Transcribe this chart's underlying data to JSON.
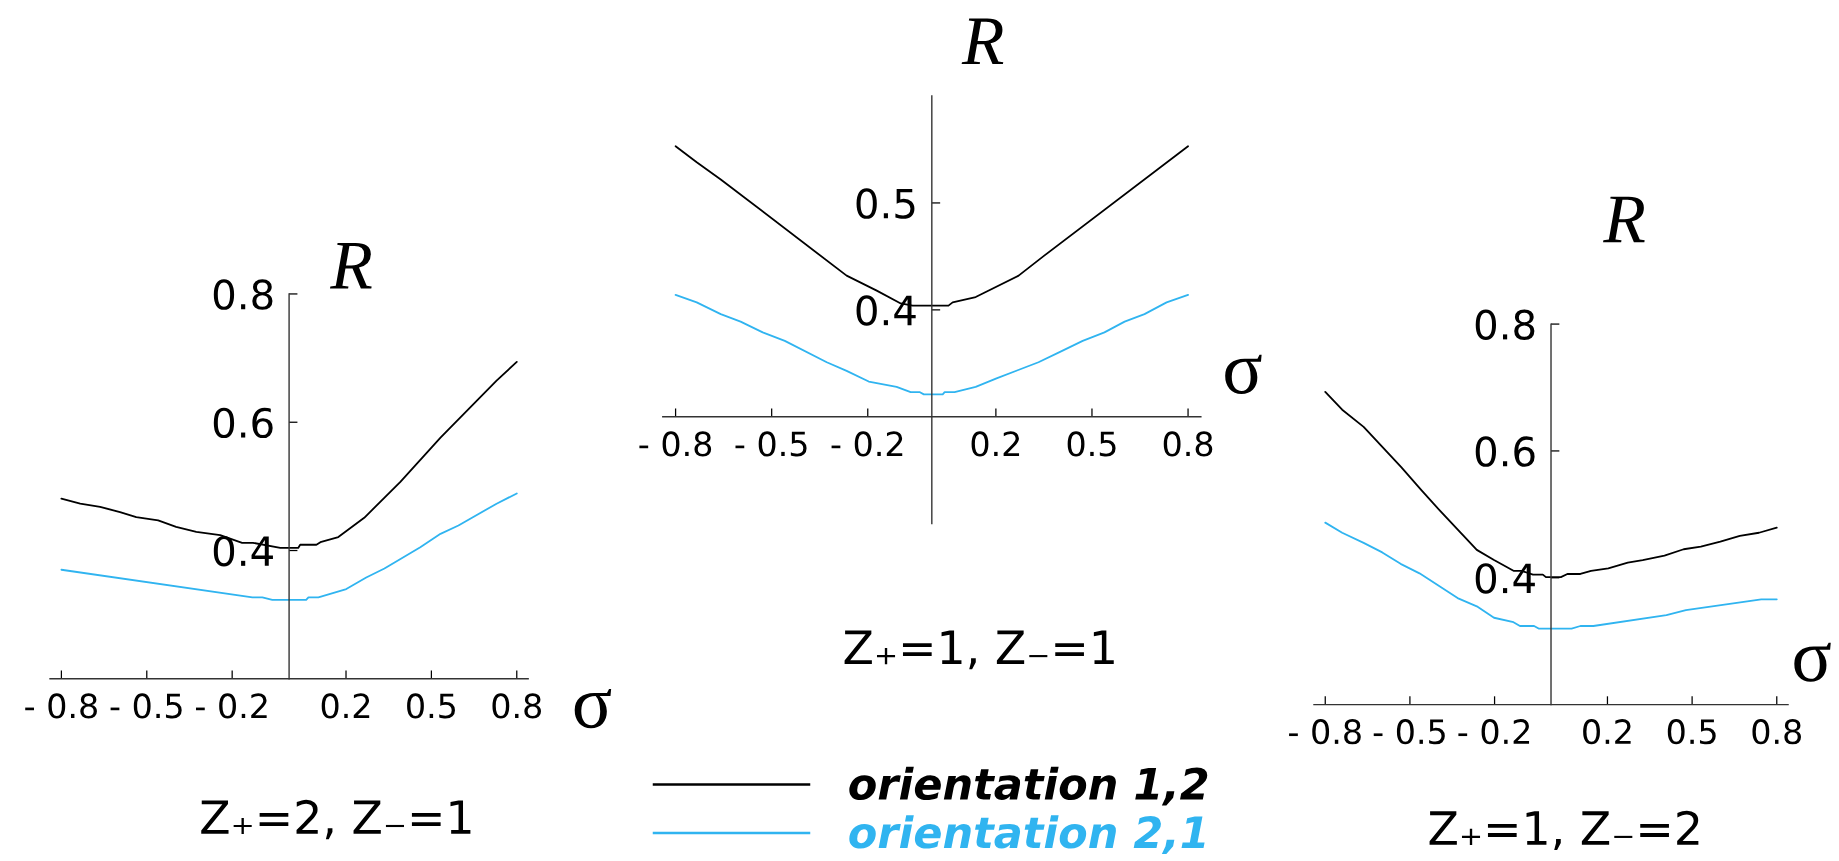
{
  "chart_data": [
    {
      "type": "line",
      "xlabel": "σ",
      "ylabel": "R",
      "annotations": [
        "Z₊=2, Z₋=1"
      ],
      "xlim": [
        -0.84,
        0.84
      ],
      "ylim": [
        0.2,
        0.8
      ],
      "xticks": [
        {
          "value": -0.8,
          "label": "- 0.8"
        },
        {
          "value": -0.5,
          "label": "- 0.5"
        },
        {
          "value": -0.2,
          "label": "- 0.2"
        },
        0.2,
        0.5,
        0.8
      ],
      "yticks": [
        0.4,
        0.6,
        0.8
      ],
      "series": [
        {
          "color": "#000000",
          "x": [
            -0.8,
            -0.734,
            -0.664,
            -0.594,
            -0.537,
            -0.46,
            -0.397,
            -0.326,
            -0.242,
            -0.165,
            -0.127,
            -0.031,
            0.032,
            0.039,
            0.096,
            0.11,
            0.173,
            0.264,
            0.391,
            0.532,
            0.729,
            0.8
          ],
          "values": [
            0.481,
            0.473,
            0.468,
            0.46,
            0.452,
            0.447,
            0.437,
            0.429,
            0.424,
            0.412,
            0.412,
            0.404,
            0.404,
            0.409,
            0.409,
            0.413,
            0.421,
            0.451,
            0.507,
            0.576,
            0.665,
            0.694
          ]
        },
        {
          "color": "#30b4f0",
          "x": [
            -0.8,
            -0.129,
            -0.094,
            -0.059,
            0.06,
            0.068,
            0.103,
            0.201,
            0.271,
            0.335,
            0.461,
            0.532,
            0.595,
            0.729,
            0.8
          ],
          "values": [
            0.37,
            0.327,
            0.327,
            0.323,
            0.323,
            0.327,
            0.327,
            0.34,
            0.358,
            0.372,
            0.405,
            0.426,
            0.439,
            0.473,
            0.489
          ]
        }
      ]
    },
    {
      "type": "line",
      "xlabel": "σ",
      "ylabel": "R",
      "annotations": [
        "Z₊=1, Z₋=1"
      ],
      "xlim": [
        -0.84,
        0.84
      ],
      "ylim": [
        0.3,
        0.6
      ],
      "xticks": [
        {
          "value": -0.8,
          "label": "- 0.8"
        },
        {
          "value": -0.5,
          "label": "- 0.5"
        },
        {
          "value": -0.2,
          "label": "- 0.2"
        },
        0.2,
        0.5,
        0.8
      ],
      "yticks": [
        0.4,
        0.5
      ],
      "legend": "bottom",
      "series": [
        {
          "name": "orientation 1,2",
          "color": "#000000",
          "x": [
            -0.8,
            -0.734,
            -0.659,
            -0.266,
            -0.172,
            -0.097,
            -0.06,
            0.052,
            0.065,
            0.137,
            0.271,
            0.352,
            0.8
          ],
          "values": [
            0.553,
            0.538,
            0.522,
            0.432,
            0.418,
            0.406,
            0.404,
            0.404,
            0.407,
            0.412,
            0.432,
            0.451,
            0.553
          ]
        },
        {
          "name": "orientation 2,1",
          "color": "#30b4f0",
          "x": [
            -0.8,
            -0.734,
            -0.659,
            -0.597,
            -0.528,
            -0.459,
            -0.328,
            -0.266,
            -0.197,
            -0.11,
            -0.066,
            -0.037,
            -0.025,
            0.034,
            0.04,
            0.071,
            0.137,
            0.202,
            0.333,
            0.402,
            0.471,
            0.539,
            0.602,
            0.664,
            0.733,
            0.8
          ],
          "values": [
            0.414,
            0.407,
            0.396,
            0.389,
            0.379,
            0.371,
            0.351,
            0.343,
            0.333,
            0.328,
            0.323,
            0.323,
            0.321,
            0.321,
            0.323,
            0.323,
            0.328,
            0.336,
            0.351,
            0.361,
            0.371,
            0.379,
            0.389,
            0.396,
            0.407,
            0.414
          ]
        }
      ]
    },
    {
      "type": "line",
      "xlabel": "σ",
      "ylabel": "R",
      "annotations": [
        "Z₊=1, Z₋=2"
      ],
      "xlim": [
        -0.84,
        0.84
      ],
      "ylim": [
        0.2,
        0.8
      ],
      "xticks": [
        {
          "value": -0.8,
          "label": "- 0.8"
        },
        {
          "value": -0.5,
          "label": "- 0.5"
        },
        {
          "value": -0.2,
          "label": "- 0.2"
        },
        0.2,
        0.5,
        0.8
      ],
      "yticks": [
        0.4,
        0.6,
        0.8
      ],
      "series": [
        {
          "color": "#000000",
          "x": [
            -0.8,
            -0.74,
            -0.664,
            -0.53,
            -0.461,
            -0.392,
            -0.263,
            -0.202,
            -0.133,
            -0.105,
            -0.064,
            -0.029,
            -0.018,
            0.035,
            0.058,
            0.104,
            0.142,
            0.203,
            0.272,
            0.325,
            0.402,
            0.47,
            0.531,
            0.6,
            0.669,
            0.737,
            0.8
          ],
          "values": [
            0.693,
            0.665,
            0.638,
            0.574,
            0.539,
            0.505,
            0.444,
            0.428,
            0.411,
            0.411,
            0.405,
            0.405,
            0.401,
            0.401,
            0.406,
            0.406,
            0.411,
            0.415,
            0.424,
            0.428,
            0.435,
            0.445,
            0.449,
            0.457,
            0.466,
            0.471,
            0.479
          ]
        },
        {
          "color": "#30b4f0",
          "x": [
            -0.8,
            -0.74,
            -0.664,
            -0.598,
            -0.533,
            -0.466,
            -0.331,
            -0.263,
            -0.202,
            -0.133,
            -0.11,
            -0.06,
            -0.044,
            0.073,
            0.104,
            0.15,
            0.409,
            0.478,
            0.745,
            0.8
          ],
          "values": [
            0.487,
            0.471,
            0.455,
            0.44,
            0.422,
            0.407,
            0.368,
            0.355,
            0.337,
            0.33,
            0.324,
            0.324,
            0.32,
            0.32,
            0.324,
            0.324,
            0.341,
            0.349,
            0.366,
            0.366
          ]
        }
      ]
    }
  ]
}
